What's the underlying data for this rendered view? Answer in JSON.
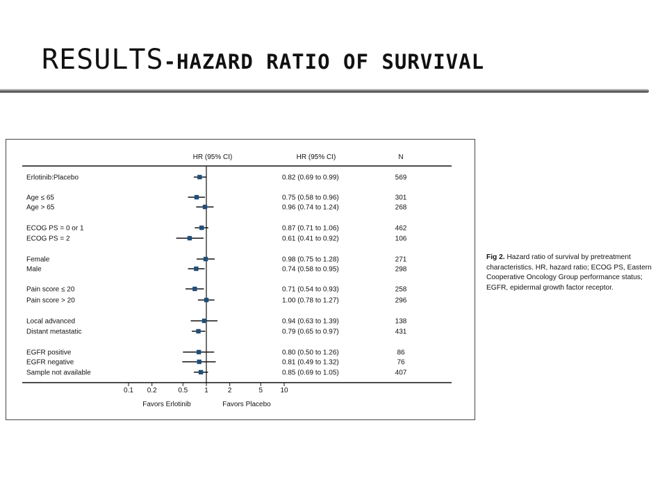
{
  "slide": {
    "title_main": "RESULTS",
    "title_sub": "-HAZARD RATIO OF SURVIVAL"
  },
  "caption": {
    "label": "Fig 2.",
    "text": "Hazard ratio of survival by pretreatment characteristics. HR, hazard ratio; ECOG PS, Eastern Cooperative Oncology Group performance status; EGFR, epidermal growth factor receptor."
  },
  "chart_data": {
    "type": "forest",
    "headers": {
      "plot": "HR (95% CI)",
      "ci": "HR (95% CI)",
      "n": "N"
    },
    "x_scale": "log",
    "x_ticks": [
      {
        "value": 0.1,
        "label": "0.1"
      },
      {
        "value": 0.2,
        "label": "0.2"
      },
      {
        "value": 0.5,
        "label": "0.5"
      },
      {
        "value": 1,
        "label": "1"
      },
      {
        "value": 2,
        "label": "2"
      },
      {
        "value": 5,
        "label": "5"
      },
      {
        "value": 10,
        "label": "10"
      }
    ],
    "x_range": [
      0.1,
      10
    ],
    "reference_line": 1,
    "x_labels": {
      "left": "Favors Erlotinib",
      "right": "Favors Placebo"
    },
    "rows": [
      {
        "label": "Erlotinib:Placebo",
        "hr": 0.82,
        "lo": 0.69,
        "hi": 0.99,
        "ci_text": "0.82 (0.69 to 0.99)",
        "n": "569"
      },
      {
        "label": "Age ≤ 65",
        "hr": 0.75,
        "lo": 0.58,
        "hi": 0.96,
        "ci_text": "0.75 (0.58 to 0.96)",
        "n": "301"
      },
      {
        "label": "Age > 65",
        "hr": 0.96,
        "lo": 0.74,
        "hi": 1.24,
        "ci_text": "0.96 (0.74 to 1.24)",
        "n": "268"
      },
      {
        "label": "ECOG PS = 0 or 1",
        "hr": 0.87,
        "lo": 0.71,
        "hi": 1.06,
        "ci_text": "0.87 (0.71 to 1.06)",
        "n": "462"
      },
      {
        "label": "ECOG PS = 2",
        "hr": 0.61,
        "lo": 0.41,
        "hi": 0.92,
        "ci_text": "0.61 (0.41 to 0.92)",
        "n": "106"
      },
      {
        "label": "Female",
        "hr": 0.98,
        "lo": 0.75,
        "hi": 1.28,
        "ci_text": "0.98 (0.75 to 1.28)",
        "n": "271"
      },
      {
        "label": "Male",
        "hr": 0.74,
        "lo": 0.58,
        "hi": 0.95,
        "ci_text": "0.74 (0.58 to 0.95)",
        "n": "298"
      },
      {
        "label": "Pain score ≤ 20",
        "hr": 0.71,
        "lo": 0.54,
        "hi": 0.93,
        "ci_text": "0.71 (0.54 to 0.93)",
        "n": "258"
      },
      {
        "label": "Pain score > 20",
        "hr": 1.0,
        "lo": 0.78,
        "hi": 1.27,
        "ci_text": "1.00 (0.78 to 1.27)",
        "n": "296"
      },
      {
        "label": "Local advanced",
        "hr": 0.94,
        "lo": 0.63,
        "hi": 1.39,
        "ci_text": "0.94 (0.63 to 1.39)",
        "n": "138"
      },
      {
        "label": "Distant metastatic",
        "hr": 0.79,
        "lo": 0.65,
        "hi": 0.97,
        "ci_text": "0.79 (0.65 to 0.97)",
        "n": "431"
      },
      {
        "label": "EGFR positive",
        "hr": 0.8,
        "lo": 0.5,
        "hi": 1.26,
        "ci_text": "0.80 (0.50 to 1.26)",
        "n": "86"
      },
      {
        "label": "EGFR negative",
        "hr": 0.81,
        "lo": 0.49,
        "hi": 1.32,
        "ci_text": "0.81 (0.49 to 1.32)",
        "n": "76"
      },
      {
        "label": "Sample not available",
        "hr": 0.85,
        "lo": 0.69,
        "hi": 1.05,
        "ci_text": "0.85 (0.69 to 1.05)",
        "n": "407"
      }
    ],
    "colors": {
      "marker": "#1f4e79",
      "line": "#111111"
    }
  }
}
